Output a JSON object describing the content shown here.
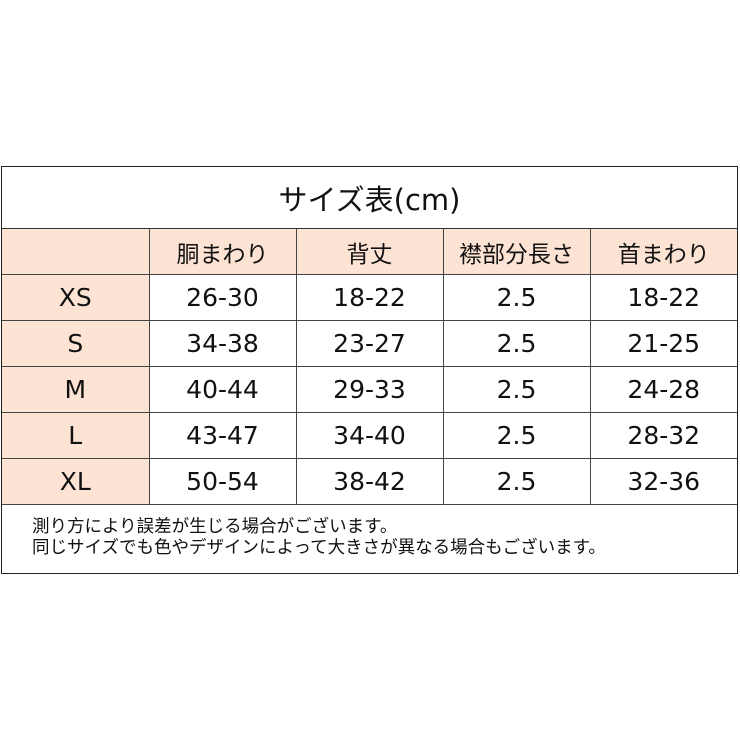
{
  "title": "サイズ表(cm)",
  "headers": [
    "",
    "胴まわり",
    "背丈",
    "襟部分長さ",
    "首まわり"
  ],
  "rows": [
    [
      "XS",
      "26-30",
      "18-22",
      "2.5",
      "18-22"
    ],
    [
      "S",
      "34-38",
      "23-27",
      "2.5",
      "21-25"
    ],
    [
      "M",
      "40-44",
      "29-33",
      "2.5",
      "24-28"
    ],
    [
      "L",
      "43-47",
      "34-40",
      "2.5",
      "28-32"
    ],
    [
      "XL",
      "50-54",
      "38-42",
      "2.5",
      "32-36"
    ]
  ],
  "notes": [
    "測り方により誤差が生じる場合がございます。",
    "同じサイズでも色やデザインによって大きさが異なる場合もございます。"
  ],
  "colors": {
    "header_bg": "#fde3d4",
    "border": "#333333"
  }
}
